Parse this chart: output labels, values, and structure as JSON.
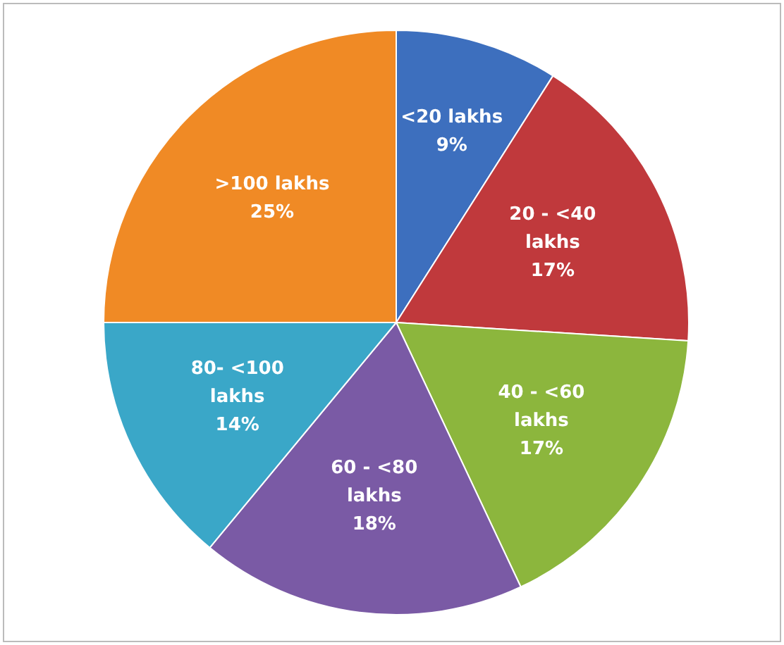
{
  "chart_data": {
    "type": "pie",
    "categories": [
      "<20 lakhs",
      "20 - <40 lakhs",
      "40 - <60 lakhs",
      "60 - <80 lakhs",
      "80- <100 lakhs",
      ">100 lakhs"
    ],
    "values": [
      9,
      17,
      17,
      18,
      14,
      25
    ],
    "colors": [
      "#3d6fbe",
      "#c0393c",
      "#8cb63d",
      "#7a5aa5",
      "#3aa7c8",
      "#f08a25"
    ],
    "value_labels": [
      "9%",
      "17%",
      "17%",
      "18%",
      "14%",
      "25%"
    ],
    "legend": false
  }
}
